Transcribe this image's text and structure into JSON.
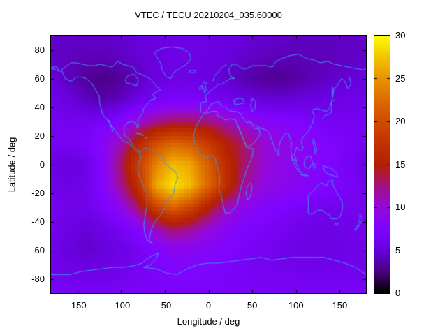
{
  "chart_data": {
    "type": "heatmap",
    "title": "VTEC / TECU 20210204_035.60000",
    "xlabel": "Longitude / deg",
    "ylabel": "Latitude / deg",
    "xlim": [
      -180,
      180
    ],
    "ylim": [
      -90,
      90
    ],
    "xticks": [
      -150,
      -100,
      -50,
      0,
      50,
      100,
      150
    ],
    "yticks": [
      -80,
      -60,
      -40,
      -20,
      0,
      20,
      40,
      60,
      80
    ],
    "grid_on": false,
    "colorbar": {
      "min": 0,
      "max": 30,
      "ticks": [
        0,
        5,
        10,
        15,
        20,
        25,
        30
      ],
      "palette_name": "gnuplot-default-rgbformulae-7-5-15",
      "palette_stops": [
        {
          "v": 0,
          "c": "#000000"
        },
        {
          "v": 2.5,
          "c": "#4A0080"
        },
        {
          "v": 5,
          "c": "#6801DD"
        },
        {
          "v": 7.5,
          "c": "#7F04FF"
        },
        {
          "v": 10,
          "c": "#9309DD"
        },
        {
          "v": 12.5,
          "c": "#A41280"
        },
        {
          "v": 15,
          "c": "#B42000"
        },
        {
          "v": 17.5,
          "c": "#C23300"
        },
        {
          "v": 20,
          "c": "#D04C00"
        },
        {
          "v": 22.5,
          "c": "#DD6C00"
        },
        {
          "v": 25,
          "c": "#E99400"
        },
        {
          "v": 27.5,
          "c": "#F4C400"
        },
        {
          "v": 30,
          "c": "#FFFF00"
        }
      ]
    },
    "grid": {
      "lons": [
        -180,
        -160,
        -140,
        -120,
        -100,
        -80,
        -60,
        -40,
        -20,
        0,
        20,
        40,
        60,
        80,
        100,
        120,
        140,
        160,
        180
      ],
      "lats": [
        90,
        75,
        60,
        45,
        30,
        15,
        0,
        -15,
        -30,
        -45,
        -60,
        -75,
        -90
      ],
      "values": [
        [
          4.5,
          4.5,
          4.5,
          4.5,
          4.8,
          5.0,
          5.2,
          5.5,
          5.5,
          5.5,
          5.2,
          5.0,
          4.8,
          4.5,
          4.3,
          4.3,
          4.3,
          4.4,
          4.5
        ],
        [
          4.5,
          4.2,
          4.0,
          4.0,
          4.3,
          4.8,
          5.2,
          5.5,
          5.6,
          5.4,
          5.0,
          4.6,
          4.2,
          4.0,
          4.0,
          4.0,
          4.1,
          4.3,
          4.5
        ],
        [
          5.0,
          4.2,
          3.2,
          2.7,
          3.2,
          4.2,
          5.2,
          5.6,
          5.6,
          5.2,
          4.6,
          3.8,
          3.2,
          3.0,
          3.4,
          4.0,
          4.4,
          4.8,
          5.0
        ],
        [
          6.0,
          5.2,
          4.2,
          3.6,
          4.2,
          5.5,
          6.5,
          7.0,
          7.0,
          6.6,
          6.0,
          5.4,
          5.0,
          4.8,
          5.0,
          5.3,
          5.5,
          5.8,
          6.0
        ],
        [
          6.5,
          6.3,
          6.2,
          6.6,
          7.8,
          10.0,
          12.0,
          13.0,
          13.0,
          12.5,
          11.0,
          9.5,
          8.5,
          8.0,
          7.5,
          7.0,
          6.6,
          6.4,
          6.5
        ],
        [
          6.5,
          6.5,
          7.0,
          8.5,
          11.0,
          16.0,
          20.0,
          22.0,
          21.0,
          18.0,
          15.0,
          13.0,
          10.5,
          9.5,
          8.8,
          8.0,
          7.4,
          7.0,
          6.5
        ],
        [
          5.5,
          5.0,
          5.5,
          8.0,
          13.0,
          18.5,
          24.0,
          27.0,
          26.0,
          21.5,
          16.5,
          13.0,
          10.5,
          9.3,
          8.6,
          8.0,
          7.4,
          6.5,
          5.5
        ],
        [
          6.0,
          5.5,
          6.0,
          8.0,
          12.0,
          17.0,
          26.0,
          29.0,
          27.0,
          22.0,
          17.0,
          12.0,
          10.0,
          9.0,
          8.5,
          8.0,
          7.5,
          7.0,
          6.0
        ],
        [
          6.5,
          6.0,
          6.0,
          7.0,
          9.0,
          13.0,
          19.0,
          22.0,
          19.5,
          15.0,
          11.0,
          9.0,
          8.0,
          7.5,
          7.0,
          6.5,
          6.2,
          6.2,
          6.5
        ],
        [
          6.3,
          5.5,
          4.8,
          5.5,
          6.5,
          8.0,
          11.0,
          13.0,
          12.0,
          10.0,
          8.5,
          7.5,
          7.0,
          6.5,
          6.0,
          5.6,
          5.5,
          6.0,
          6.3
        ],
        [
          6.0,
          5.0,
          4.5,
          5.0,
          5.5,
          6.5,
          7.5,
          8.5,
          8.5,
          8.0,
          7.5,
          7.0,
          6.5,
          6.0,
          5.6,
          5.5,
          5.6,
          5.8,
          6.0
        ],
        [
          6.2,
          5.8,
          5.6,
          5.6,
          6.0,
          6.5,
          7.0,
          7.4,
          7.5,
          7.4,
          7.0,
          6.7,
          6.5,
          6.3,
          6.2,
          6.1,
          6.1,
          6.1,
          6.2
        ],
        [
          6.8,
          6.8,
          6.8,
          6.8,
          6.8,
          6.9,
          7.0,
          7.0,
          7.0,
          7.0,
          7.0,
          6.9,
          6.8,
          6.8,
          6.8,
          6.8,
          6.8,
          6.8,
          6.8
        ]
      ]
    },
    "coastline_color": "#4090F0",
    "coastlines": [
      [
        -168,
        66,
        -164,
        60,
        -157,
        58,
        -151,
        61,
        -146,
        61,
        -140,
        60,
        -134,
        57,
        -130,
        53,
        -125,
        48,
        -124,
        42,
        -121,
        35,
        -117,
        32,
        -112,
        28,
        -107,
        24,
        -102,
        20,
        -97,
        16,
        -92,
        15,
        -88,
        13,
        -84,
        10,
        -80,
        8,
        -78,
        9,
        -83,
        11,
        -87,
        14,
        -91,
        18,
        -96,
        20,
        -97,
        26,
        -93,
        29,
        -88,
        30,
        -83,
        29,
        -81,
        25,
        -80,
        27,
        -81,
        31,
        -76,
        35,
        -74,
        39,
        -70,
        42,
        -66,
        45,
        -60,
        46,
        -64,
        49,
        -58,
        51,
        -55,
        52,
        -60,
        55,
        -64,
        58,
        -67,
        60,
        -71,
        61,
        -77,
        63,
        -82,
        64,
        -86,
        68,
        -92,
        69,
        -98,
        70,
        -104,
        72,
        -110,
        68,
        -117,
        69,
        -124,
        70,
        -130,
        69,
        -137,
        69,
        -144,
        70,
        -151,
        71,
        -157,
        71,
        -162,
        69,
        -168,
        66
      ],
      [
        -53,
        66,
        -48,
        61,
        -43,
        60,
        -40,
        64,
        -33,
        67,
        -25,
        70,
        -20,
        74,
        -22,
        78,
        -30,
        81,
        -42,
        82,
        -54,
        81,
        -62,
        78,
        -58,
        74,
        -54,
        70,
        -53,
        66
      ],
      [
        -94,
        57,
        -88,
        56,
        -82,
        55,
        -80,
        59,
        -85,
        63,
        -92,
        62,
        -95,
        59,
        -94,
        57
      ],
      [
        -114,
        31,
        -111,
        26,
        -109,
        23,
        -112,
        28,
        -114,
        31
      ],
      [
        -78,
        8,
        -74,
        11,
        -69,
        11,
        -63,
        10,
        -57,
        6,
        -52,
        5,
        -50,
        1,
        -45,
        -2,
        -38,
        -5,
        -35,
        -9,
        -38,
        -14,
        -40,
        -21,
        -46,
        -24,
        -48,
        -28,
        -53,
        -34,
        -58,
        -38,
        -62,
        -41,
        -65,
        -45,
        -67,
        -50,
        -68,
        -54,
        -64,
        -55,
        -70,
        -53,
        -73,
        -48,
        -74,
        -42,
        -72,
        -35,
        -70,
        -28,
        -70,
        -20,
        -74,
        -16,
        -78,
        -10,
        -81,
        -4,
        -80,
        1,
        -77,
        4,
        -78,
        8
      ],
      [
        -6,
        35,
        -11,
        30,
        -15,
        25,
        -17,
        20,
        -16,
        15,
        -12,
        10,
        -8,
        6,
        -2,
        5,
        4,
        6,
        8,
        4,
        9,
        0,
        12,
        -5,
        13,
        -11,
        12,
        -17,
        15,
        -23,
        17,
        -29,
        19,
        -34,
        24,
        -34,
        28,
        -32,
        33,
        -28,
        35,
        -22,
        37,
        -16,
        40,
        -11,
        43,
        -5,
        46,
        0,
        50,
        5,
        51,
        11,
        46,
        11,
        42,
        15,
        39,
        19,
        36,
        23,
        33,
        28,
        31,
        31,
        25,
        32,
        19,
        31,
        15,
        33,
        10,
        34,
        10,
        37,
        4,
        37,
        -6,
        35
      ],
      [
        44,
        -16,
        48,
        -13,
        50,
        -16,
        48,
        -22,
        45,
        -25,
        43,
        -21,
        44,
        -16
      ],
      [
        -9,
        36,
        -9,
        43,
        -2,
        44,
        -4,
        48,
        0,
        50,
        4,
        52,
        8,
        54,
        11,
        56,
        15,
        56,
        20,
        58,
        25,
        60,
        30,
        60,
        25,
        62,
        23,
        66,
        27,
        70,
        32,
        70,
        38,
        67,
        44,
        67,
        50,
        69,
        58,
        69,
        66,
        69,
        73,
        68,
        77,
        72,
        84,
        74,
        93,
        76,
        103,
        77,
        112,
        74,
        120,
        73,
        128,
        71,
        136,
        72,
        144,
        70,
        152,
        69,
        160,
        68,
        168,
        67,
        177,
        66,
        180,
        67
      ],
      [
        161,
        61,
        163,
        56,
        159,
        53,
        156,
        58,
        152,
        60,
        147,
        55,
        142,
        51,
        141,
        45,
        139,
        40,
        135,
        37,
        129,
        38,
        124,
        39,
        118,
        38,
        121,
        34,
        119,
        29,
        114,
        23,
        109,
        20,
        106,
        16,
        108,
        11,
        105,
        9,
        101,
        12,
        98,
        7,
        101,
        2,
        96,
        4,
        94,
        9,
        95,
        15,
        91,
        22,
        87,
        21,
        82,
        16,
        80,
        10,
        77,
        9,
        73,
        16,
        70,
        21,
        66,
        24,
        61,
        25,
        57,
        26,
        53,
        27,
        49,
        29,
        47,
        30,
        44,
        29,
        41,
        31,
        36,
        36,
        31,
        37,
        27,
        37,
        23,
        38,
        19,
        40,
        15,
        40,
        12,
        44,
        7,
        43,
        3,
        42,
        -2,
        37,
        -6,
        36
      ],
      [
        33,
        28,
        36,
        24,
        39,
        19,
        43,
        12,
        45,
        12,
        50,
        14,
        55,
        17,
        59,
        21,
        58,
        25,
        53,
        25,
        49,
        28,
        47,
        30
      ],
      [
        50,
        46,
        54,
        44,
        53,
        39,
        50,
        37,
        48,
        41,
        50,
        46
      ],
      [
        29,
        45,
        34,
        46,
        39,
        46,
        41,
        43,
        35,
        42,
        30,
        42,
        29,
        45
      ],
      [
        -5,
        50,
        -2,
        52,
        -4,
        55,
        -2,
        57,
        -5,
        58,
        -7,
        55,
        -5,
        52,
        -5,
        50
      ],
      [
        -10,
        52,
        -7,
        53,
        -8,
        55,
        -10,
        54,
        -10,
        52
      ],
      [
        -22,
        64,
        -16,
        64,
        -14,
        65,
        -18,
        66,
        -22,
        65,
        -22,
        64
      ],
      [
        5,
        58,
        7,
        62,
        12,
        65,
        16,
        68,
        21,
        70
      ],
      [
        130,
        32,
        133,
        34,
        137,
        35,
        140,
        36,
        141,
        40,
        140,
        43,
        143,
        45,
        145,
        44
      ],
      [
        142,
        47,
        143,
        51,
        142,
        54,
        141,
        49,
        142,
        47
      ],
      [
        95,
        5,
        99,
        2,
        103,
        -3,
        106,
        -6,
        103,
        -5,
        98,
        0,
        95,
        4,
        95,
        5
      ],
      [
        105,
        -7,
        110,
        -7,
        114,
        -8,
        110,
        -8,
        105,
        -7
      ],
      [
        109,
        1,
        112,
        5,
        117,
        6,
        119,
        1,
        115,
        -3,
        110,
        -2,
        109,
        1
      ],
      [
        119,
        0,
        121,
        -3,
        123,
        -1,
        121,
        1,
        119,
        0
      ],
      [
        131,
        -1,
        136,
        -2,
        141,
        -3,
        146,
        -6,
        148,
        -9,
        143,
        -8,
        137,
        -7,
        132,
        -4,
        131,
        -1
      ],
      [
        120,
        18,
        122,
        14,
        124,
        10,
        122,
        7,
        121,
        12,
        119,
        16,
        120,
        18
      ],
      [
        80,
        9,
        81,
        7,
        80,
        6,
        79,
        8,
        80,
        9
      ],
      [
        114,
        -22,
        114,
        -34,
        118,
        -35,
        125,
        -32,
        130,
        -32,
        136,
        -35,
        138,
        -35,
        140,
        -38,
        147,
        -38,
        150,
        -37,
        153,
        -32,
        153,
        -27,
        151,
        -24,
        146,
        -19,
        142,
        -14,
        142,
        -11,
        137,
        -12,
        135,
        -15,
        130,
        -13,
        126,
        -14,
        122,
        -17,
        114,
        -22
      ],
      [
        145,
        -41,
        148,
        -41,
        147,
        -43,
        145,
        -42,
        145,
        -41
      ],
      [
        173,
        -35,
        176,
        -38,
        174,
        -41,
        171,
        -44,
        167,
        -46,
        170,
        -43,
        173,
        -39,
        173,
        -35
      ],
      [
        -84,
        22,
        -79,
        22,
        -74,
        20,
        -78,
        21,
        -84,
        22
      ],
      [
        -73,
        19,
        -69,
        19,
        -72,
        18,
        -73,
        19
      ],
      [
        -180,
        67,
        -174,
        66,
        -170,
        65,
        -173,
        68,
        -180,
        68
      ],
      [
        -180,
        -77,
        -170,
        -77,
        -158,
        -77,
        -146,
        -75,
        -134,
        -74,
        -122,
        -73,
        -110,
        -72,
        -98,
        -72,
        -86,
        -71,
        -76,
        -69,
        -68,
        -65,
        -61,
        -63,
        -57,
        -62,
        -60,
        -66,
        -66,
        -70,
        -74,
        -72,
        -60,
        -73,
        -48,
        -76,
        -36,
        -77,
        -24,
        -73,
        -12,
        -70,
        0,
        -69,
        12,
        -69,
        24,
        -68,
        36,
        -67,
        48,
        -66,
        60,
        -65,
        72,
        -67,
        84,
        -66,
        96,
        -65,
        108,
        -65,
        120,
        -65,
        132,
        -65,
        144,
        -67,
        156,
        -69,
        168,
        -72,
        180,
        -77
      ]
    ]
  }
}
